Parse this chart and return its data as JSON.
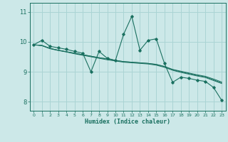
{
  "xlabel": "Humidex (Indice chaleur)",
  "bg_color": "#cce8e8",
  "grid_color": "#aad4d4",
  "line_color": "#1a7060",
  "xlim": [
    -0.5,
    23.5
  ],
  "ylim": [
    7.7,
    11.3
  ],
  "xticks": [
    0,
    1,
    2,
    3,
    4,
    5,
    6,
    7,
    8,
    9,
    10,
    11,
    12,
    13,
    14,
    15,
    16,
    17,
    18,
    19,
    20,
    21,
    22,
    23
  ],
  "yticks": [
    8,
    9,
    10,
    11
  ],
  "series_jagged": [
    9.9,
    10.05,
    9.85,
    9.8,
    9.75,
    9.68,
    9.62,
    9.0,
    9.68,
    9.45,
    9.38,
    10.25,
    10.85,
    9.72,
    10.05,
    10.1,
    9.28,
    8.65,
    8.82,
    8.78,
    8.72,
    8.68,
    8.48,
    8.05
  ],
  "series_smooth1": [
    9.9,
    9.88,
    9.78,
    9.72,
    9.67,
    9.62,
    9.57,
    9.52,
    9.47,
    9.43,
    9.38,
    9.34,
    9.32,
    9.3,
    9.28,
    9.25,
    9.18,
    9.08,
    9.02,
    8.96,
    8.9,
    8.85,
    8.76,
    8.66
  ],
  "series_smooth2": [
    9.9,
    9.88,
    9.78,
    9.72,
    9.67,
    9.62,
    9.57,
    9.52,
    9.47,
    9.43,
    9.38,
    9.34,
    9.32,
    9.3,
    9.28,
    9.24,
    9.17,
    9.07,
    9.0,
    8.94,
    8.88,
    8.83,
    8.73,
    8.63
  ],
  "series_smooth3": [
    9.9,
    9.87,
    9.77,
    9.71,
    9.66,
    9.6,
    9.55,
    9.5,
    9.45,
    9.4,
    9.36,
    9.32,
    9.3,
    9.28,
    9.26,
    9.22,
    9.15,
    9.05,
    8.98,
    8.92,
    8.86,
    8.81,
    8.71,
    8.61
  ]
}
